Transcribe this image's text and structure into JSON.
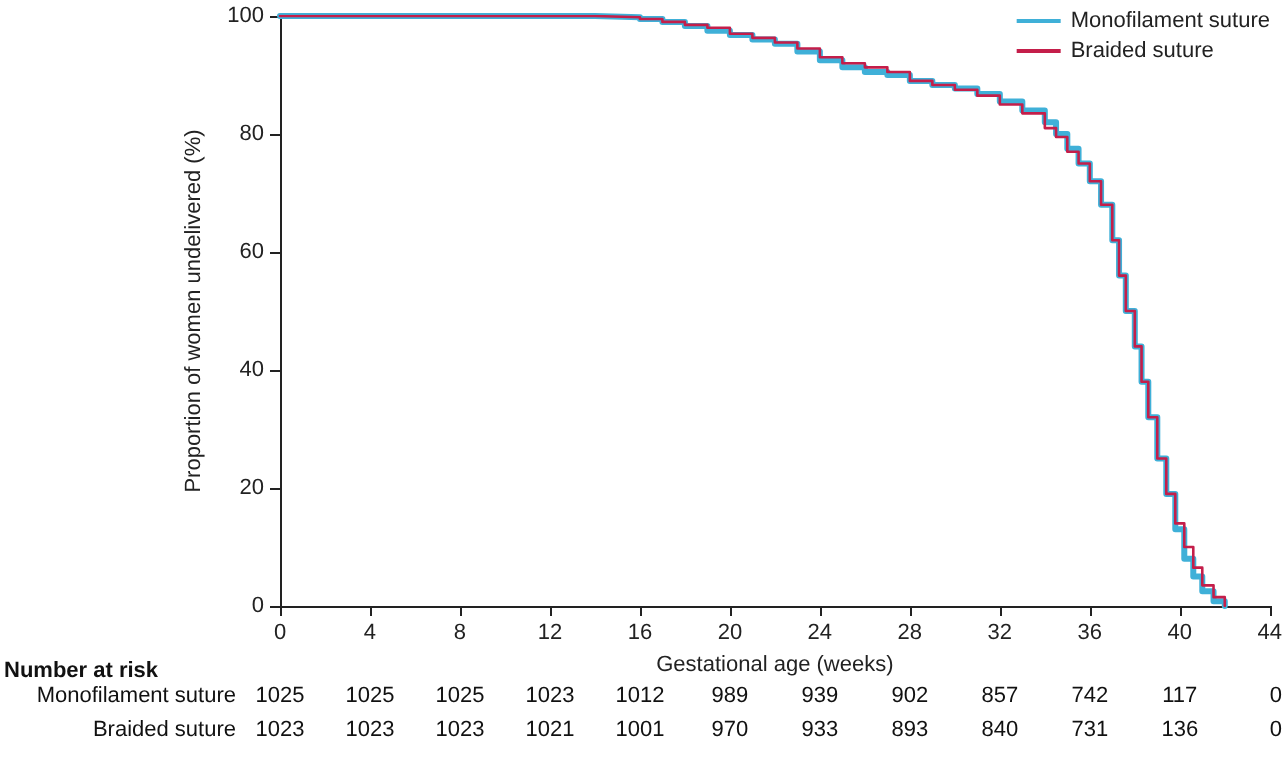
{
  "chart_data": {
    "type": "step",
    "xlabel": "Gestational age (weeks)",
    "ylabel": "Proportion of women undelivered (%)",
    "xlim": [
      0,
      44
    ],
    "xticks": [
      0,
      4,
      8,
      12,
      16,
      20,
      24,
      28,
      32,
      36,
      40,
      44
    ],
    "ylim": [
      0,
      100
    ],
    "yticks": [
      0,
      20,
      40,
      60,
      80,
      100
    ],
    "grid": false,
    "legend": "top right",
    "marker": "none",
    "line_style": "solid",
    "series": [
      {
        "name": "Monofilament suture",
        "color": "#3fb0d8",
        "x": [
          0,
          10,
          14,
          16,
          17,
          18,
          19,
          20,
          21,
          22,
          23,
          24,
          25,
          26,
          27,
          28,
          29,
          30,
          31,
          32,
          33,
          34,
          34.5,
          35,
          35.5,
          36,
          36.5,
          37,
          37.3,
          37.6,
          38,
          38.3,
          38.6,
          39,
          39.4,
          39.8,
          40.2,
          40.6,
          41,
          41.5,
          42
        ],
        "values": [
          100,
          100,
          99.8,
          99.5,
          99,
          98.3,
          97.5,
          96.8,
          96,
          95.3,
          94,
          92.5,
          91.3,
          90.5,
          90,
          89,
          88.3,
          87.7,
          86.8,
          85.5,
          84,
          82,
          80,
          77.5,
          75,
          72,
          68,
          62,
          56,
          50,
          44,
          38,
          32,
          25,
          19,
          13,
          8,
          5,
          2.5,
          0.8,
          0
        ]
      },
      {
        "name": "Braided suture",
        "color": "#c41e4a",
        "x": [
          0,
          10,
          14,
          16,
          17,
          18,
          19,
          20,
          21,
          22,
          23,
          24,
          25,
          26,
          27,
          28,
          29,
          30,
          31,
          32,
          33,
          34,
          34.5,
          35,
          35.5,
          36,
          36.5,
          37,
          37.3,
          37.6,
          38,
          38.3,
          38.6,
          39,
          39.4,
          39.8,
          40.2,
          40.6,
          41,
          41.5,
          42
        ],
        "values": [
          100,
          100,
          99.8,
          99.5,
          99,
          98.5,
          98,
          97,
          96.3,
          95.5,
          94.5,
          93,
          92,
          91.3,
          90.5,
          89,
          88.3,
          87.5,
          86.5,
          85,
          83.5,
          81,
          79.5,
          77,
          75,
          72,
          68,
          62,
          56,
          50,
          44,
          38,
          32,
          25,
          19,
          14,
          10,
          6.5,
          3.5,
          1.5,
          0
        ]
      }
    ],
    "annotations": [
      "Number at risk",
      "Monofilament suture",
      "1025",
      "1025",
      "1025",
      "1023",
      "1012",
      "989",
      "939",
      "902",
      "857",
      "742",
      "117",
      "0",
      "Braided suture",
      "1023",
      "1023",
      "1023",
      "1021",
      "1001",
      "970",
      "933",
      "893",
      "840",
      "731",
      "136",
      "0"
    ]
  }
}
